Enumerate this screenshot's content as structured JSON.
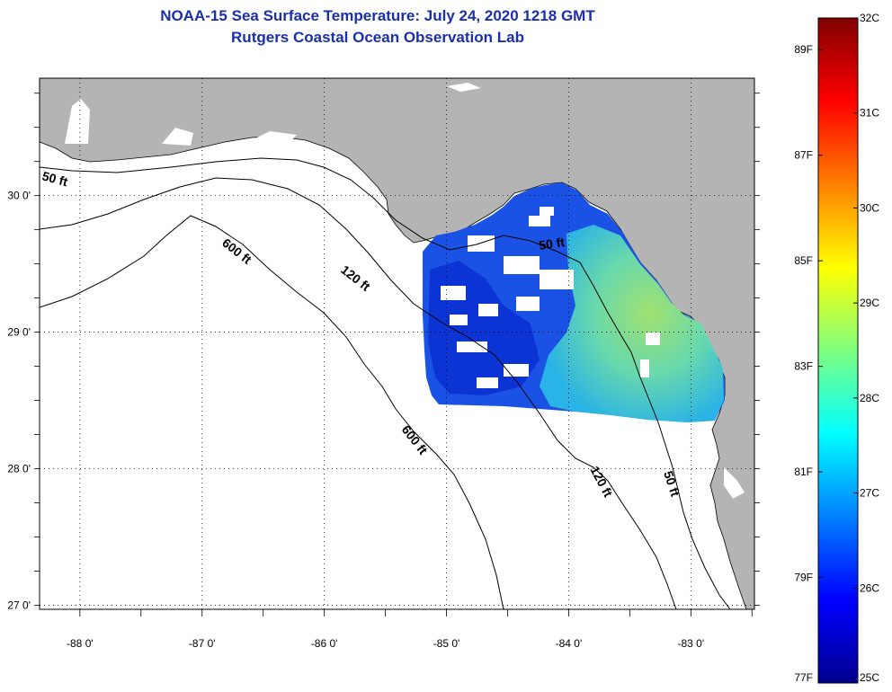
{
  "header": {
    "title": "NOAA-15 Sea Surface Temperature:  July 24, 2020 1218 GMT",
    "subtitle": "Rutgers Coastal Ocean Observation Lab"
  },
  "map": {
    "lon_range": [
      -88.33,
      -82.48
    ],
    "lat_range": [
      26.97,
      30.86
    ],
    "lon_ticks": [
      {
        "value": -88,
        "label": "-88 0'"
      },
      {
        "value": -87,
        "label": "-87 0'"
      },
      {
        "value": -86,
        "label": "-86 0'"
      },
      {
        "value": -85,
        "label": "-85 0'"
      },
      {
        "value": -84,
        "label": "-84 0'"
      },
      {
        "value": -83,
        "label": "-83 0'"
      }
    ],
    "lat_ticks": [
      {
        "value": 30,
        "label": "30 0'"
      },
      {
        "value": 29,
        "label": "29 0'"
      },
      {
        "value": 28,
        "label": "28 0'"
      },
      {
        "value": 27,
        "label": "27 0'"
      }
    ],
    "depth_labels": [
      "50 ft",
      "600 ft",
      "120 ft",
      "50 ft",
      "600 ft",
      "120 ft",
      "50 ft"
    ],
    "colors": {
      "land": "#b4b4b4",
      "water": "#ffffff",
      "contour": "#000000"
    }
  },
  "colorbar": {
    "celsius": [
      "32C",
      "31C",
      "30C",
      "29C",
      "28C",
      "27C",
      "26C",
      "25C"
    ],
    "fahrenheit": [
      "89F",
      "87F",
      "85F",
      "83F",
      "81F",
      "79F",
      "77F"
    ],
    "range_c": [
      25,
      32
    ]
  }
}
